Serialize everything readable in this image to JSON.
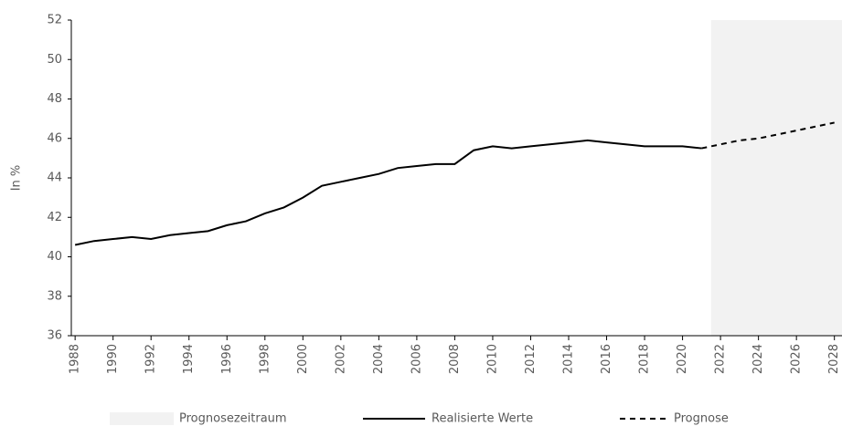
{
  "chart_data": {
    "type": "line",
    "ylabel": "In %",
    "xlim": [
      1987.8,
      2028.4
    ],
    "ylim": [
      36,
      52
    ],
    "yticks": [
      36,
      38,
      40,
      42,
      44,
      46,
      48,
      50,
      52
    ],
    "xticks": [
      1988,
      1990,
      1992,
      1994,
      1996,
      1998,
      2000,
      2002,
      2004,
      2006,
      2008,
      2010,
      2012,
      2014,
      2016,
      2018,
      2020,
      2022,
      2024,
      2026,
      2028
    ],
    "shade": {
      "name": "Prognosezeitraum",
      "color": "#f2f2f2",
      "range": [
        2021.5,
        2028.4
      ]
    },
    "series": [
      {
        "name": "Realisierte Werte",
        "color": "#000000",
        "dashed": false,
        "x": [
          1988,
          1989,
          1990,
          1991,
          1992,
          1993,
          1994,
          1995,
          1996,
          1997,
          1998,
          1999,
          2000,
          2001,
          2002,
          2003,
          2004,
          2005,
          2006,
          2007,
          2008,
          2009,
          2010,
          2011,
          2012,
          2013,
          2014,
          2015,
          2016,
          2017,
          2018,
          2019,
          2020,
          2021
        ],
        "values": [
          40.6,
          40.8,
          40.9,
          41.0,
          40.9,
          41.1,
          41.2,
          41.3,
          41.6,
          41.8,
          42.2,
          42.5,
          43.0,
          43.6,
          43.8,
          44.0,
          44.2,
          44.5,
          44.6,
          44.7,
          44.7,
          45.4,
          45.6,
          45.5,
          45.6,
          45.7,
          45.8,
          45.9,
          45.8,
          45.7,
          45.6,
          45.6,
          45.6,
          45.5
        ]
      },
      {
        "name": "Prognose",
        "color": "#000000",
        "dashed": true,
        "x": [
          2021,
          2022,
          2023,
          2024,
          2025,
          2026,
          2027,
          2028
        ],
        "values": [
          45.5,
          45.7,
          45.9,
          46.0,
          46.2,
          46.4,
          46.6,
          46.8
        ]
      }
    ]
  }
}
